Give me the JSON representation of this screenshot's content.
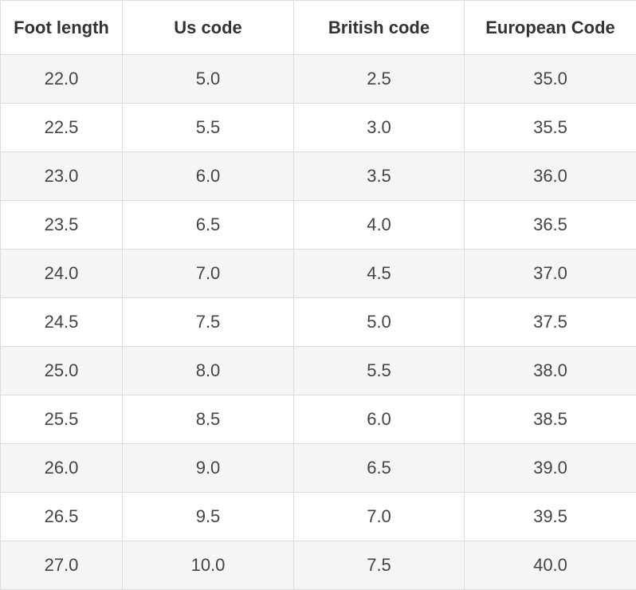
{
  "table": {
    "header": [
      "Foot length",
      "Us code",
      "British code",
      "European Code"
    ],
    "rows": [
      [
        "22.0",
        "5.0",
        "2.5",
        "35.0"
      ],
      [
        "22.5",
        "5.5",
        "3.0",
        "35.5"
      ],
      [
        "23.0",
        "6.0",
        "3.5",
        "36.0"
      ],
      [
        "23.5",
        "6.5",
        "4.0",
        "36.5"
      ],
      [
        "24.0",
        "7.0",
        "4.5",
        "37.0"
      ],
      [
        "24.5",
        "7.5",
        "5.0",
        "37.5"
      ],
      [
        "25.0",
        "8.0",
        "5.5",
        "38.0"
      ],
      [
        "25.5",
        "8.5",
        "6.0",
        "38.5"
      ],
      [
        "26.0",
        "9.0",
        "6.5",
        "39.0"
      ],
      [
        "26.5",
        "9.5",
        "7.0",
        "39.5"
      ],
      [
        "27.0",
        "10.0",
        "7.5",
        "40.0"
      ]
    ]
  }
}
